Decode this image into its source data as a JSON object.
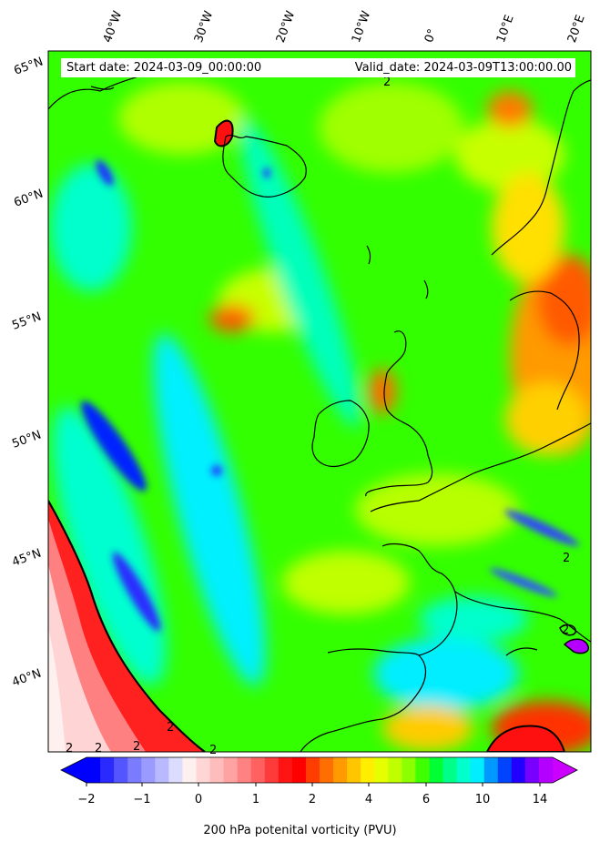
{
  "header": {
    "start_date": "Start date: 2024-03-09_00:00:00",
    "valid_date": "Valid_date: 2024-03-09T13:00:00.00"
  },
  "lon_labels": [
    "40°W",
    "30°W",
    "20°W",
    "10°W",
    "0°",
    "10°E",
    "20°E"
  ],
  "lat_labels": [
    "65°N",
    "60°N",
    "55°N",
    "50°N",
    "45°N",
    "40°N"
  ],
  "contour_labels": [
    "2",
    "2",
    "2",
    "2",
    "2",
    "2",
    "2",
    "2"
  ],
  "colorbar": {
    "label": "200 hPa potenital vorticity (PVU)",
    "ticks": [
      "−2",
      "−1",
      "0",
      "1",
      "2",
      "4",
      "6",
      "10",
      "14"
    ],
    "colors": [
      "#0000ff",
      "#2a2aff",
      "#5555ff",
      "#7b7bff",
      "#9a9aff",
      "#b9b9ff",
      "#dcdcff",
      "#fff0f0",
      "#ffd6d6",
      "#ffbcbc",
      "#ffa2a2",
      "#ff8282",
      "#ff6060",
      "#ff3a3a",
      "#ff1414",
      "#ff0000",
      "#ff3d00",
      "#ff6e00",
      "#ff9a00",
      "#ffc600",
      "#ffee00",
      "#e6ff00",
      "#bfff00",
      "#8cff00",
      "#40ff00",
      "#00ff33",
      "#00ff88",
      "#00ffcc",
      "#00eeff",
      "#0099ff",
      "#0044ff",
      "#2200ff",
      "#7700ff",
      "#b400ff"
    ],
    "under_color": "#0000ff",
    "over_color": "#cc00ff"
  }
}
